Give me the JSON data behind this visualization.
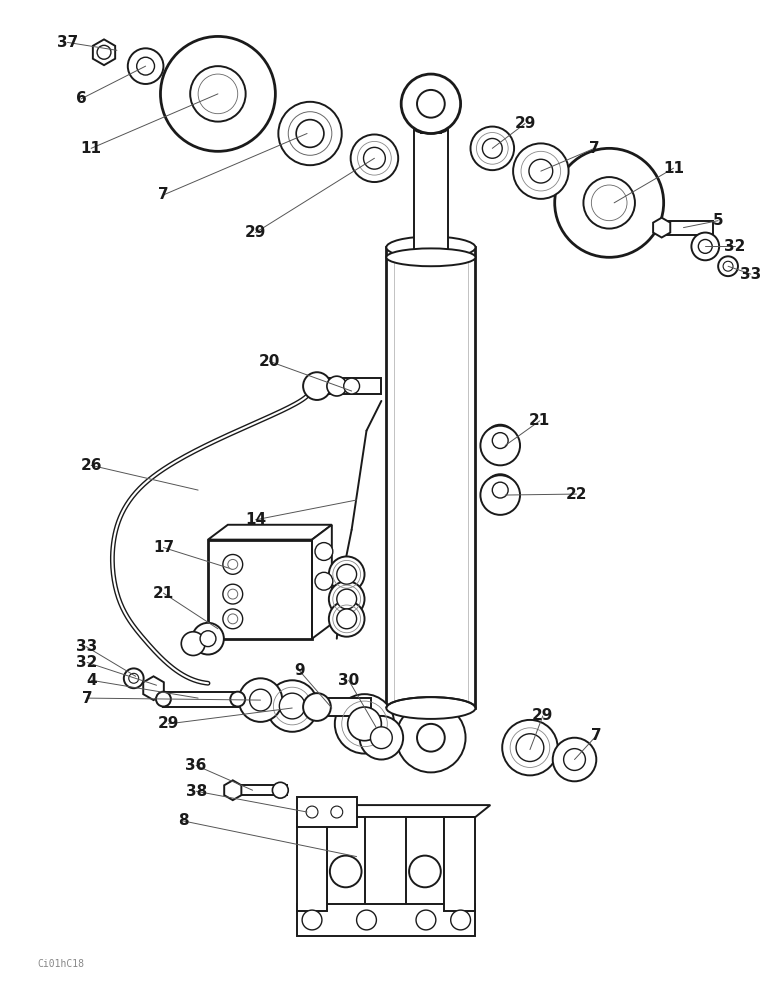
{
  "bg_color": "#ffffff",
  "lc": "#1a1a1a",
  "watermark": "Ci01hC18",
  "fig_width": 7.6,
  "fig_height": 10.0,
  "dpi": 100
}
